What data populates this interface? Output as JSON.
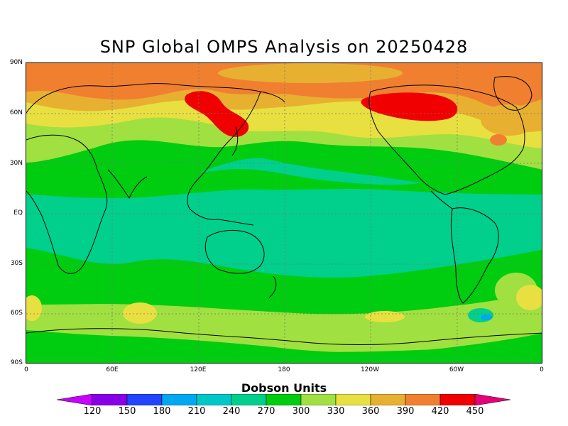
{
  "title": "SNP Global OMPS Analysis on 20250428",
  "axes": {
    "y_labels": [
      "90N",
      "60N",
      "30N",
      "EQ",
      "30S",
      "60S",
      "90S"
    ],
    "x_labels": [
      "0",
      "60E",
      "120E",
      "180",
      "120W",
      "60W",
      "0"
    ]
  },
  "colorbar": {
    "title": "Dobson Units",
    "labels": [
      "120",
      "150",
      "180",
      "210",
      "240",
      "270",
      "300",
      "330",
      "360",
      "390",
      "420",
      "450"
    ],
    "colors": [
      "#c800ff",
      "#8800e8",
      "#2244ff",
      "#00a8f0",
      "#00c8c8",
      "#00d08c",
      "#00cc10",
      "#a0e040",
      "#e8e040",
      "#e8b030",
      "#f08030",
      "#f00000",
      "#e8007a"
    ]
  }
}
